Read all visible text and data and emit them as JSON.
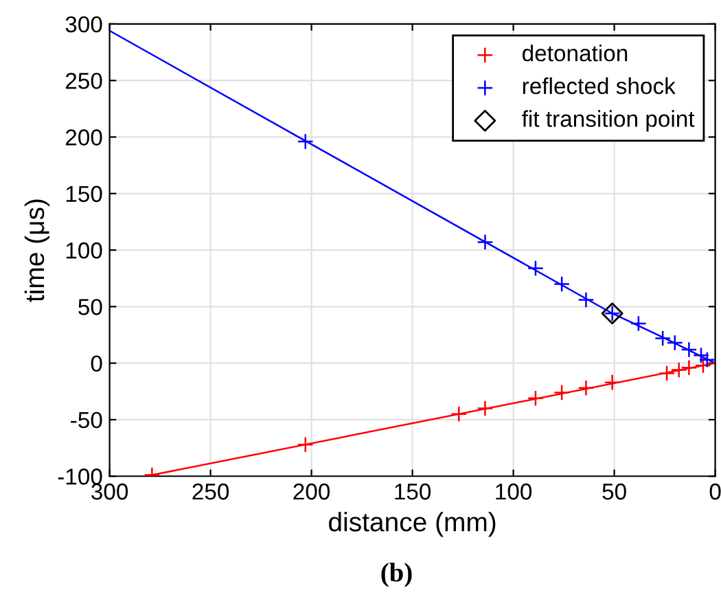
{
  "chart_data": {
    "type": "scatter",
    "xlabel": "distance (mm)",
    "ylabel": "time (μs)",
    "xlim": [
      300,
      0
    ],
    "ylim": [
      -100,
      300
    ],
    "xticks": [
      300,
      250,
      200,
      150,
      100,
      50,
      0
    ],
    "yticks": [
      -100,
      -50,
      0,
      50,
      100,
      150,
      200,
      250,
      300
    ],
    "grid": true,
    "legend": "top right",
    "annotations": [
      "(b)"
    ],
    "series": [
      {
        "name": "detonation",
        "marker": "cross",
        "color": "#ff0000",
        "x": [
          279,
          203,
          127,
          114,
          89,
          76,
          64,
          51,
          24,
          18,
          13,
          6
        ],
        "values": [
          -99,
          -72,
          -45,
          -40,
          -31,
          -26,
          -22,
          -17,
          -9,
          -6,
          -4,
          -2
        ]
      },
      {
        "name": "reflected shock",
        "marker": "cross",
        "color": "#0000ff",
        "x": [
          203,
          114,
          89,
          76,
          64,
          51,
          38,
          26,
          20,
          13,
          7,
          4
        ],
        "values": [
          196,
          107,
          84,
          70,
          56,
          44,
          35,
          22,
          18,
          12,
          7,
          3
        ]
      },
      {
        "name": "fit transition point",
        "marker": "diamond",
        "color": "#000000",
        "x": [
          51
        ],
        "values": [
          44
        ]
      },
      {
        "type": "line",
        "color": "#0000ff",
        "x": [
          300,
          51,
          25,
          0
        ],
        "values": [
          294,
          44,
          22,
          0
        ]
      },
      {
        "type": "line",
        "color": "#ff0000",
        "x": [
          282,
          0
        ],
        "values": [
          -100,
          0
        ]
      }
    ]
  }
}
